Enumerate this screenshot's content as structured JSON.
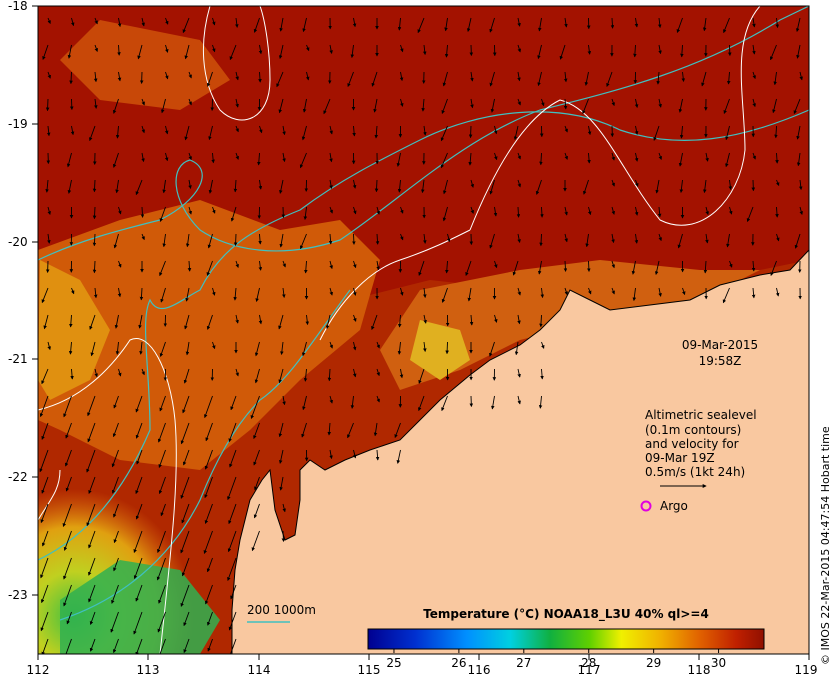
{
  "map": {
    "lon_ticks": [
      "112",
      "113",
      "114",
      "115",
      "116",
      "117",
      "118",
      "119"
    ],
    "lat_ticks": [
      "-18",
      "-19",
      "-20",
      "-21",
      "-22",
      "-23"
    ],
    "lon_range": [
      112,
      119
    ],
    "lat_range": [
      -23.5,
      -18
    ],
    "colors": {
      "land": "#f9c8a0",
      "ocean_warm": "#a01000",
      "contour": "#ffffff",
      "bathy": "#40c0c0",
      "argo": "#e000e0"
    }
  },
  "timestamp": {
    "date": "09-Mar-2015",
    "time": "19:58Z"
  },
  "legend_text": {
    "line1": "Altimetric sealevel",
    "line2": "(0.1m contours)",
    "line3": "and velocity for",
    "line4": "09-Mar 19Z",
    "line5": "0.5m/s (1kt 24h)",
    "argo": "Argo"
  },
  "bathy_legend": "200  1000m",
  "colorbar": {
    "title": "Temperature (°C) NOAA18_L3U 40% ql>=4",
    "ticks": [
      "25",
      "26",
      "27",
      "28",
      "29",
      "30"
    ],
    "range": [
      24.6,
      30.7
    ]
  },
  "credit": "© IMOS 22-Mar-2015 04:47:54 Hobart time"
}
